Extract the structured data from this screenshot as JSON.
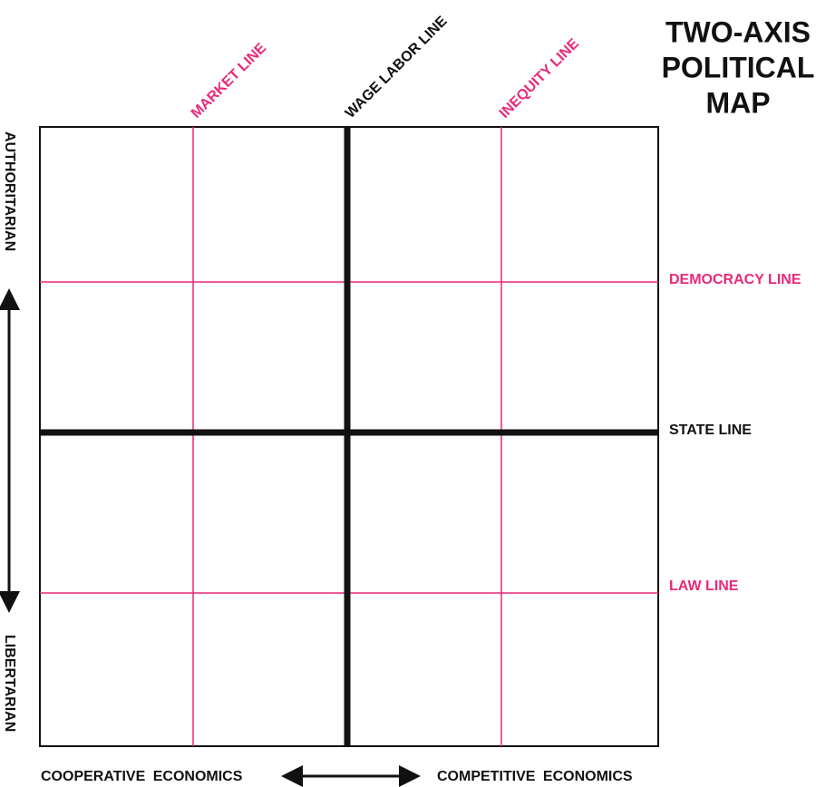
{
  "title": [
    "TWO-AXIS",
    "POLITICAL",
    "MAP"
  ],
  "vertical_lines": [
    "MARKET LINE",
    "WAGE LABOR LINE",
    "INEQUITY LINE"
  ],
  "horizontal_lines": [
    "DEMOCRACY LINE",
    "STATE LINE",
    "LAW LINE"
  ],
  "y_axis": {
    "top": "AUTHORITARIAN",
    "bottom": "LIBERTARIAN"
  },
  "x_axis": {
    "left": "COOPERATIVE ECONOMICS",
    "right": "COMPETITIVE ECONOMICS"
  }
}
